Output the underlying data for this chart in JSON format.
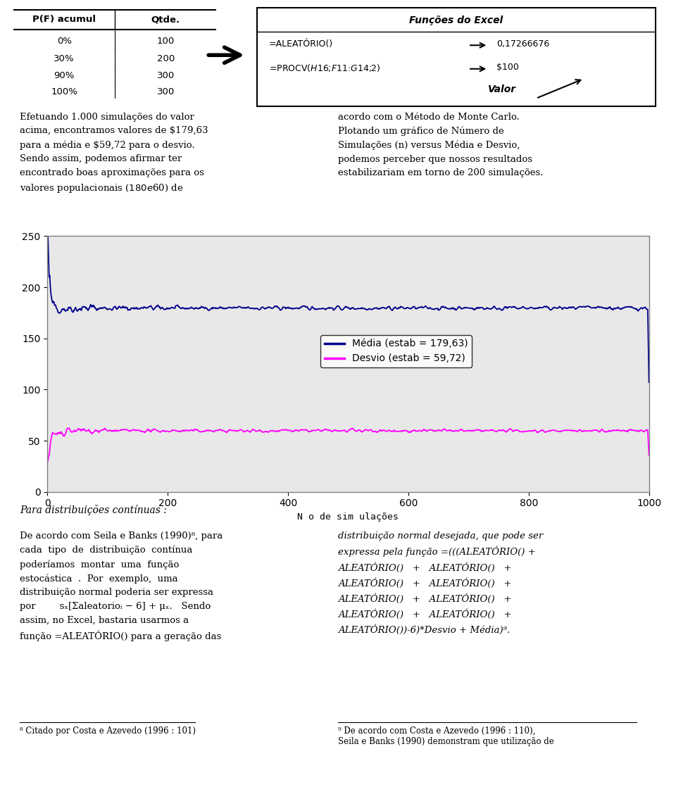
{
  "page_bg": "#ffffff",
  "chart_bg": "#e8e8e8",
  "chart_border": "#808080",
  "media_color": "#00008B",
  "desvio_color": "#FF00FF",
  "media_estab": 179.63,
  "desvio_estab": 59.72,
  "x_max": 1000,
  "y_max": 250,
  "y_min": 0,
  "x_ticks": [
    0,
    200,
    400,
    600,
    800,
    1000
  ],
  "y_ticks": [
    0,
    50,
    100,
    150,
    200,
    250
  ],
  "xlabel": "N o de sim ulações",
  "legend_media": "Média (estab = 179,63)",
  "legend_desvio": "Desvio (estab = 59,72)",
  "table_headers": [
    "P(F) acumul",
    "Qtde."
  ],
  "table_rows": [
    [
      "0%",
      "100"
    ],
    [
      "30%",
      "200"
    ],
    [
      "90%",
      "300"
    ],
    [
      "100%",
      "300"
    ]
  ],
  "excel_title": "Funções do Excel",
  "excel_line1": "=ALEATÓRIO()",
  "excel_line2": "=PROCV($H$16;$F$11:$G$14;2)",
  "excel_result1": "0,17266676",
  "excel_result2": "$100",
  "excel_valor": "Valor",
  "text_left1": "Efetuando 1.000 simulações do valor\nacima, encontramos valores de $179,63\npara a média e $59,72 para o desvio.\nSendo assim, podemos afirmar ter\nencontrado boas aproximações para os\nvalores populacionais ($180 e $60) de",
  "text_right1": "acordo com o Método de Monte Carlo.\nPlotando um gráfico de Número de\nSimulações (n) versus Média e Desvio,\npodemos perceber que nossos resultados\nestabilizariam em torno de 200 simulações.",
  "text_bottom_left_title": "Para distribuições contínuas :",
  "footnote_left": "8 Citado por Costa e Azevedo (1996 : 101)",
  "footnote_right": "9 De acordo com Costa e Azevedo (1996 : 110),\nSeila e Banks (1990) demonstram que utilização de"
}
